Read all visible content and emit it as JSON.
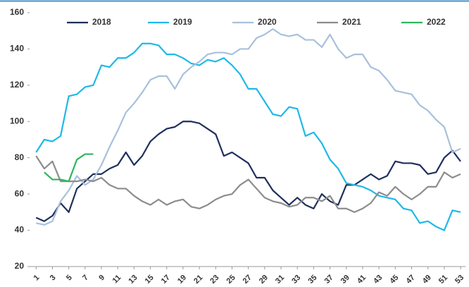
{
  "chart_data": {
    "type": "line",
    "x": [
      1,
      2,
      3,
      4,
      5,
      6,
      7,
      8,
      9,
      10,
      11,
      12,
      13,
      14,
      15,
      16,
      17,
      18,
      19,
      20,
      21,
      22,
      23,
      24,
      25,
      26,
      27,
      28,
      29,
      30,
      31,
      32,
      33,
      34,
      35,
      36,
      37,
      38,
      39,
      40,
      41,
      42,
      43,
      44,
      45,
      46,
      47,
      48,
      49,
      50,
      51,
      52,
      53
    ],
    "series": [
      {
        "name": "2018",
        "color": "#1f2f5c",
        "values": [
          47,
          45,
          48,
          55,
          50,
          63,
          67,
          71,
          71,
          74,
          76,
          83,
          76,
          81,
          89,
          93,
          96,
          97,
          100,
          100,
          99,
          96,
          93,
          81,
          83,
          80,
          77,
          69,
          69,
          62,
          58,
          54,
          58,
          54,
          52,
          60,
          56,
          54,
          65,
          65,
          68,
          71,
          68,
          70,
          78,
          77,
          77,
          76,
          71,
          72,
          80,
          84,
          78
        ]
      },
      {
        "name": "2019",
        "color": "#1fb8e8",
        "values": [
          83,
          90,
          89,
          92,
          114,
          115,
          119,
          120,
          131,
          130,
          135,
          135,
          138,
          143,
          143,
          142,
          137,
          137,
          135,
          132,
          131,
          134,
          133,
          135,
          131,
          126,
          118,
          118,
          111,
          104,
          103,
          108,
          107,
          92,
          94,
          88,
          79,
          74,
          66,
          65,
          64,
          62,
          59,
          58,
          57,
          52,
          51,
          44,
          45,
          42,
          40,
          51,
          50
        ]
      },
      {
        "name": "2020",
        "color": "#a8c0dc",
        "values": [
          44,
          43,
          45,
          56,
          62,
          70,
          65,
          68,
          76,
          86,
          95,
          105,
          110,
          116,
          123,
          125,
          125,
          118,
          126,
          130,
          133,
          137,
          138,
          138,
          137,
          140,
          140,
          146,
          148,
          151,
          148,
          147,
          148,
          145,
          145,
          141,
          148,
          140,
          135,
          137,
          137,
          130,
          128,
          123,
          117,
          116,
          115,
          109,
          106,
          101,
          97,
          83,
          85
        ]
      },
      {
        "name": "2021",
        "color": "#8c8c8c",
        "values": [
          81,
          74,
          78,
          67,
          67,
          67,
          68,
          67,
          69,
          65,
          63,
          63,
          59,
          56,
          54,
          57,
          54,
          56,
          57,
          53,
          52,
          54,
          57,
          59,
          60,
          65,
          68,
          63,
          58,
          56,
          55,
          53,
          54,
          58,
          58,
          56,
          59,
          52,
          52,
          50,
          52,
          55,
          61,
          59,
          64,
          60,
          57,
          60,
          64,
          64,
          72,
          69,
          71
        ]
      },
      {
        "name": "2022",
        "color": "#2db55d",
        "values": [
          null,
          72,
          68,
          68,
          67,
          79,
          82,
          82,
          null,
          null,
          null,
          null,
          null,
          null,
          null,
          null,
          null,
          null,
          null,
          null,
          null,
          null,
          null,
          null,
          null,
          null,
          null,
          null,
          null,
          null,
          null,
          null,
          null,
          null,
          null,
          null,
          null,
          null,
          null,
          null,
          null,
          null,
          null,
          null,
          null,
          null,
          null,
          null,
          null,
          null,
          null,
          null,
          null
        ]
      }
    ],
    "xlim": [
      0.2,
      53.6
    ],
    "xticks": [
      1,
      3,
      5,
      7,
      9,
      11,
      13,
      15,
      17,
      19,
      21,
      23,
      25,
      27,
      29,
      31,
      33,
      35,
      37,
      39,
      41,
      43,
      45,
      47,
      49,
      51,
      53
    ],
    "ylim": [
      20,
      160
    ],
    "yticks": [
      20,
      40,
      60,
      80,
      100,
      120,
      140,
      160
    ],
    "legend": "top"
  }
}
